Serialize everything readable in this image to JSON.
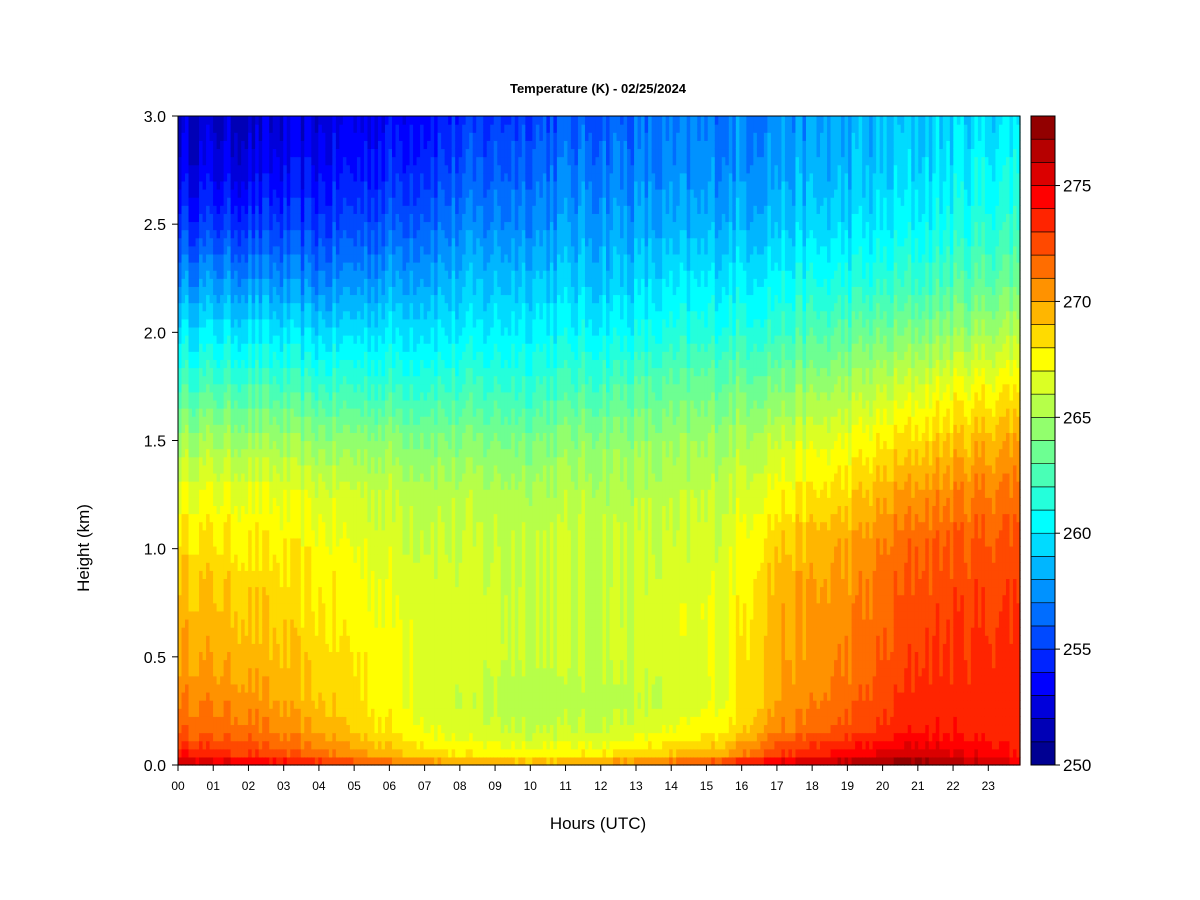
{
  "chart_data": {
    "type": "heatmap",
    "title": "Temperature (K) - 02/25/2024",
    "xlabel": "Hours (UTC)",
    "ylabel": "Height (km)",
    "x_ticks": [
      "00",
      "01",
      "02",
      "03",
      "04",
      "05",
      "06",
      "07",
      "08",
      "09",
      "10",
      "11",
      "12",
      "13",
      "14",
      "15",
      "16",
      "17",
      "18",
      "19",
      "20",
      "21",
      "22",
      "23"
    ],
    "xlim": [
      0,
      23.9
    ],
    "y_ticks": [
      "0.0",
      "0.5",
      "1.0",
      "1.5",
      "2.0",
      "2.5",
      "3.0"
    ],
    "ylim": [
      0,
      3.0
    ],
    "colorbar": {
      "range": [
        250,
        278
      ],
      "tick_values": [
        250,
        255,
        260,
        265,
        270,
        275
      ],
      "tick_labels": [
        "250",
        "255",
        "260",
        "265",
        "270",
        "275"
      ],
      "levels": 28
    },
    "heights_km": [
      0.0,
      0.05,
      0.15,
      0.3,
      0.5,
      0.75,
      1.0,
      1.25,
      1.5,
      1.75,
      2.0,
      2.25,
      2.5,
      2.75,
      3.0
    ],
    "profiles": [
      {
        "hour": 0,
        "temps_K": [
          276.5,
          274.0,
          272.0,
          271.0,
          270.0,
          269.5,
          268.5,
          267.0,
          265.0,
          262.5,
          260.0,
          257.5,
          255.0,
          253.0,
          252.0
        ]
      },
      {
        "hour": 2,
        "temps_K": [
          275.5,
          273.0,
          271.5,
          270.5,
          269.5,
          269.0,
          268.0,
          267.0,
          265.0,
          262.5,
          260.0,
          257.5,
          255.0,
          253.0,
          252.0
        ]
      },
      {
        "hour": 4,
        "temps_K": [
          274.0,
          271.5,
          270.0,
          269.0,
          268.5,
          268.0,
          267.5,
          266.5,
          264.5,
          262.0,
          259.5,
          257.0,
          255.0,
          253.5,
          252.5
        ]
      },
      {
        "hour": 6,
        "temps_K": [
          272.0,
          269.5,
          268.0,
          267.5,
          267.5,
          267.0,
          266.5,
          266.0,
          264.5,
          262.0,
          260.0,
          258.0,
          256.0,
          254.5,
          253.5
        ]
      },
      {
        "hour": 8,
        "temps_K": [
          270.5,
          268.0,
          266.5,
          266.0,
          266.5,
          266.5,
          266.0,
          265.5,
          264.0,
          262.0,
          260.0,
          258.5,
          257.0,
          255.5,
          254.5
        ]
      },
      {
        "hour": 10,
        "temps_K": [
          270.0,
          267.5,
          266.0,
          265.5,
          266.0,
          266.0,
          266.0,
          265.5,
          264.0,
          262.0,
          260.5,
          259.0,
          257.5,
          256.5,
          255.5
        ]
      },
      {
        "hour": 12,
        "temps_K": [
          270.5,
          268.0,
          266.0,
          265.5,
          266.0,
          266.0,
          266.0,
          265.5,
          264.5,
          262.5,
          260.5,
          259.0,
          258.0,
          257.0,
          256.0
        ]
      },
      {
        "hour": 14,
        "temps_K": [
          272.0,
          269.0,
          267.0,
          266.0,
          266.5,
          266.5,
          266.0,
          265.5,
          264.5,
          263.0,
          261.0,
          259.5,
          258.0,
          257.0,
          256.5
        ]
      },
      {
        "hour": 15.5,
        "temps_K": [
          273.5,
          270.0,
          268.0,
          267.0,
          267.0,
          267.0,
          266.5,
          266.0,
          265.0,
          263.5,
          261.5,
          260.0,
          258.5,
          257.5,
          257.0
        ]
      },
      {
        "hour": 17,
        "temps_K": [
          276.0,
          273.0,
          271.0,
          270.0,
          270.0,
          269.5,
          269.0,
          267.5,
          266.0,
          264.0,
          262.0,
          260.5,
          259.0,
          258.0,
          257.5
        ]
      },
      {
        "hour": 19,
        "temps_K": [
          277.0,
          274.5,
          272.5,
          271.5,
          271.0,
          270.5,
          270.0,
          268.5,
          267.0,
          265.0,
          263.0,
          261.0,
          259.5,
          258.5,
          258.0
        ]
      },
      {
        "hour": 21,
        "temps_K": [
          278.0,
          276.0,
          274.0,
          273.5,
          273.0,
          272.5,
          272.0,
          270.5,
          268.5,
          266.5,
          264.0,
          262.0,
          260.5,
          259.5,
          259.0
        ]
      },
      {
        "hour": 23.9,
        "temps_K": [
          275.0,
          274.0,
          273.5,
          273.5,
          273.5,
          273.0,
          272.5,
          271.5,
          270.0,
          268.0,
          265.5,
          263.5,
          262.0,
          261.0,
          260.0
        ]
      }
    ]
  }
}
